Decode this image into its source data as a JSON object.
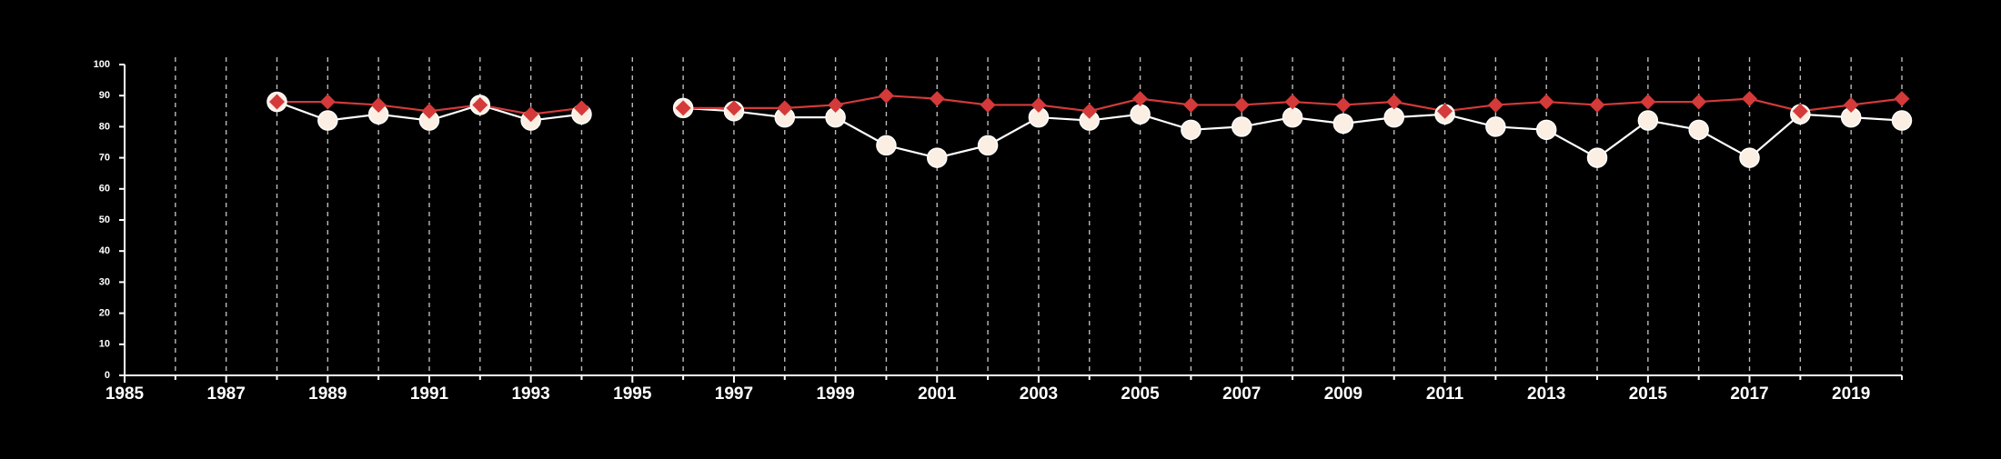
{
  "chart_data": {
    "type": "line",
    "title": "",
    "xlabel": "",
    "ylabel": "",
    "xlim": [
      1985,
      2020
    ],
    "ylim": [
      0,
      100
    ],
    "x_ticks": [
      1985,
      1987,
      1989,
      1991,
      1993,
      1995,
      1997,
      1999,
      2001,
      2003,
      2005,
      2007,
      2009,
      2011,
      2013,
      2015,
      2017,
      2019
    ],
    "y_ticks": [
      0,
      10,
      20,
      30,
      40,
      50,
      60,
      70,
      80,
      90,
      100
    ],
    "grid": "vertical dashed lines at every year from 1986 to 2020",
    "legend": "none",
    "colors": {
      "background": "#000000",
      "axis": "#ffffff",
      "grid": "#bbbbbb",
      "series_white_line": "#ffffff",
      "series_white_marker": "#fbeee2",
      "series_red": "#d43a3a"
    },
    "series": [
      {
        "marker": "circle",
        "color": "#fbeee2",
        "points": [
          [
            1988,
            88
          ],
          [
            1989,
            82
          ],
          [
            1990,
            84
          ],
          [
            1991,
            82
          ],
          [
            1992,
            87
          ],
          [
            1993,
            82
          ],
          [
            1994,
            84
          ],
          [
            1996,
            86
          ],
          [
            1997,
            85
          ],
          [
            1998,
            83
          ],
          [
            1999,
            83
          ],
          [
            2000,
            74
          ],
          [
            2001,
            70
          ],
          [
            2002,
            74
          ],
          [
            2003,
            83
          ],
          [
            2004,
            82
          ],
          [
            2005,
            84
          ],
          [
            2006,
            79
          ],
          [
            2007,
            80
          ],
          [
            2008,
            83
          ],
          [
            2009,
            81
          ],
          [
            2010,
            83
          ],
          [
            2011,
            84
          ],
          [
            2012,
            80
          ],
          [
            2013,
            79
          ],
          [
            2014,
            70
          ],
          [
            2015,
            82
          ],
          [
            2016,
            79
          ],
          [
            2017,
            70
          ],
          [
            2018,
            84
          ],
          [
            2019,
            83
          ],
          [
            2020,
            82
          ]
        ]
      },
      {
        "marker": "diamond",
        "color": "#d43a3a",
        "points": [
          [
            1988,
            88
          ],
          [
            1989,
            88
          ],
          [
            1990,
            87
          ],
          [
            1991,
            85
          ],
          [
            1992,
            87
          ],
          [
            1993,
            84
          ],
          [
            1994,
            86
          ],
          [
            1996,
            86
          ],
          [
            1997,
            86
          ],
          [
            1998,
            86
          ],
          [
            1999,
            87
          ],
          [
            2000,
            90
          ],
          [
            2001,
            89
          ],
          [
            2002,
            87
          ],
          [
            2003,
            87
          ],
          [
            2004,
            85
          ],
          [
            2005,
            89
          ],
          [
            2006,
            87
          ],
          [
            2007,
            87
          ],
          [
            2008,
            88
          ],
          [
            2009,
            87
          ],
          [
            2010,
            88
          ],
          [
            2011,
            85
          ],
          [
            2012,
            87
          ],
          [
            2013,
            88
          ],
          [
            2014,
            87
          ],
          [
            2015,
            88
          ],
          [
            2016,
            88
          ],
          [
            2017,
            89
          ],
          [
            2018,
            85
          ],
          [
            2019,
            87
          ],
          [
            2020,
            89
          ]
        ]
      }
    ]
  }
}
